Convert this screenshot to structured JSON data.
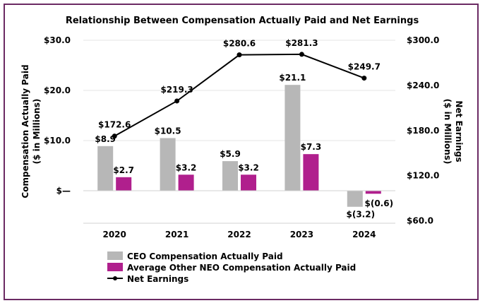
{
  "chart_data": {
    "type": "bar",
    "title": "Relationship Between Compensation Actually Paid and Net Earnings",
    "categories": [
      "2020",
      "2021",
      "2022",
      "2023",
      "2024"
    ],
    "ylabel": [
      "Compensation Actually Paid",
      "($ in Millions)"
    ],
    "y2label": [
      "Net Earnings",
      "($ in Millions)"
    ],
    "ylim": [
      -6,
      30
    ],
    "yticks": [
      {
        "value": 30,
        "label": "$30.0"
      },
      {
        "value": 20,
        "label": "$20.0"
      },
      {
        "value": 10,
        "label": "$10.0"
      },
      {
        "value": 0,
        "label": "$—"
      }
    ],
    "y2lim": [
      60,
      300
    ],
    "y2ticks": [
      {
        "value": 300,
        "label": "$300.0"
      },
      {
        "value": 240,
        "label": "$240.0"
      },
      {
        "value": 180,
        "label": "$180.0"
      },
      {
        "value": 120,
        "label": "$120.0"
      },
      {
        "value": 60,
        "label": "$60.0"
      }
    ],
    "grid": "horizontal",
    "legend_position": "bottom",
    "series": [
      {
        "name": "CEO Compensation Actually Paid",
        "kind": "bar",
        "axis": "left",
        "color": "#b7b7b7",
        "values": [
          8.9,
          10.5,
          5.9,
          21.1,
          -3.2
        ],
        "labels": [
          "$8.9",
          "$10.5",
          "$5.9",
          "$21.1",
          "$(3.2)"
        ]
      },
      {
        "name": "Average Other NEO Compensation Actually Paid",
        "kind": "bar",
        "axis": "left",
        "color": "#b01f8d",
        "values": [
          2.7,
          3.2,
          3.2,
          7.3,
          -0.6
        ],
        "labels": [
          "$2.7",
          "$3.2",
          "$3.2",
          "$7.3",
          "$(0.6)"
        ]
      },
      {
        "name": "Net Earnings",
        "kind": "line",
        "axis": "right",
        "color": "#000000",
        "values": [
          172.6,
          219.3,
          280.6,
          281.3,
          249.7
        ],
        "labels": [
          "$172.6",
          "$219.3",
          "$280.6",
          "$281.3",
          "$249.7"
        ]
      }
    ]
  }
}
